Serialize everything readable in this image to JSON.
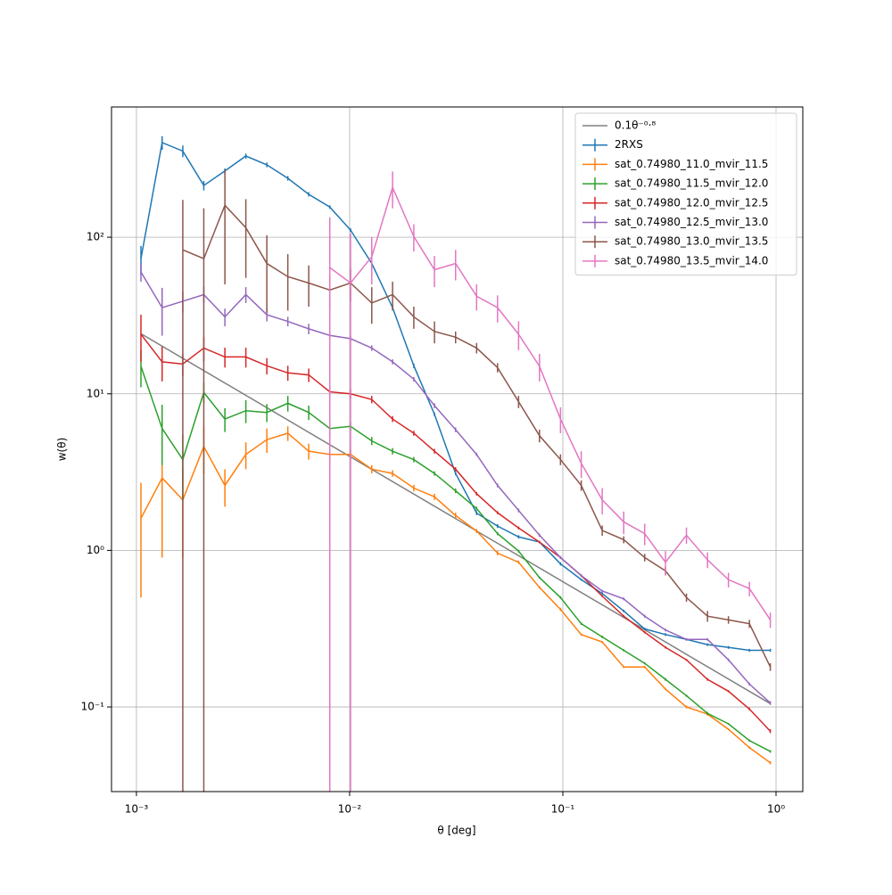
{
  "chart_data": {
    "type": "line",
    "x_label": "θ [deg]",
    "y_label": "w(θ)",
    "xscale": "log",
    "yscale": "log",
    "grid": true,
    "legend": "upper right",
    "xlim": [
      0.000764,
      1.335
    ],
    "ylim": [
      0.0288,
      679
    ],
    "xticks": [
      {
        "value": 0.001,
        "label": "10⁻³"
      },
      {
        "value": 0.01,
        "label": "10⁻²"
      },
      {
        "value": 0.1,
        "label": "10⁻¹"
      },
      {
        "value": 1,
        "label": "10⁰"
      }
    ],
    "yticks": [
      {
        "value": 0.1,
        "label": "10⁻¹"
      },
      {
        "value": 1,
        "label": "10⁰"
      },
      {
        "value": 10,
        "label": "10¹"
      },
      {
        "value": 100,
        "label": "10²"
      }
    ],
    "x": [
      0.00105,
      0.00132,
      0.00165,
      0.00207,
      0.0026,
      0.00326,
      0.00409,
      0.00513,
      0.00643,
      0.00807,
      0.0101,
      0.0127,
      0.0159,
      0.02,
      0.025,
      0.0314,
      0.0394,
      0.0494,
      0.062,
      0.0777,
      0.0975,
      0.122,
      0.153,
      0.193,
      0.242,
      0.303,
      0.38,
      0.477,
      0.598,
      0.75,
      0.94
    ],
    "series": [
      {
        "name": "0.1θ⁻⁰·⁸",
        "color": "#808080",
        "x": [
          0.00105,
          0.94
        ],
        "values": [
          24.2,
          0.105
        ]
      },
      {
        "name": "2RXS",
        "color": "#1f77b4",
        "values": [
          73,
          402,
          355,
          214,
          265,
          330,
          290,
          238,
          188,
          156,
          111,
          68,
          35.5,
          15.1,
          7.4,
          3.1,
          1.73,
          1.43,
          1.22,
          1.13,
          0.82,
          0.65,
          0.53,
          0.41,
          0.315,
          0.29,
          0.27,
          0.25,
          0.24,
          0.23,
          0.23
        ],
        "errors": [
          15,
          40,
          30,
          15,
          10,
          12,
          10,
          8,
          6,
          4,
          3,
          2,
          1.2,
          0.5,
          0.2,
          0.08,
          0.05,
          0.04,
          0.03,
          0.02,
          0.02,
          0.01,
          0.01,
          0.008,
          0.006,
          0.006,
          0.005,
          0.005,
          0.005,
          0.005,
          0.005
        ]
      },
      {
        "name": "sat_0.74980_11.0_mvir_11.5",
        "color": "#ff7f0e",
        "values": [
          1.6,
          2.9,
          2.1,
          4.6,
          2.6,
          4.1,
          5.1,
          5.6,
          4.3,
          4.1,
          4.1,
          3.3,
          3.1,
          2.5,
          2.2,
          1.67,
          1.33,
          0.96,
          0.84,
          0.58,
          0.42,
          0.29,
          0.26,
          0.18,
          0.18,
          0.13,
          0.1,
          0.09,
          0.072,
          0.055,
          0.044
        ],
        "errors": [
          1.1,
          2.0,
          1.2,
          1.5,
          0.7,
          0.8,
          0.9,
          0.6,
          0.5,
          0.4,
          0.3,
          0.2,
          0.15,
          0.12,
          0.1,
          0.07,
          0.04,
          0.03,
          0.02,
          0.01,
          0.01,
          0.005,
          0.004,
          0.003,
          0.003,
          0.002,
          0.002,
          0.002,
          0.001,
          0.001,
          0.001
        ]
      },
      {
        "name": "sat_0.74980_11.5_mvir_12.0",
        "color": "#2ca02c",
        "values": [
          15,
          6,
          3.8,
          10.2,
          6.9,
          7.8,
          7.6,
          8.7,
          7.6,
          6,
          6.2,
          5,
          4.3,
          3.8,
          3.1,
          2.4,
          1.85,
          1.28,
          0.99,
          0.67,
          0.5,
          0.34,
          0.28,
          0.23,
          0.19,
          0.15,
          0.118,
          0.091,
          0.078,
          0.061,
          0.052
        ],
        "errors": [
          4,
          2.5,
          1.7,
          1.5,
          1.2,
          1.3,
          1,
          1,
          0.8,
          0.5,
          0.4,
          0.3,
          0.2,
          0.15,
          0.1,
          0.08,
          0.05,
          0.03,
          0.02,
          0.01,
          0.01,
          0.006,
          0.005,
          0.004,
          0.003,
          0.003,
          0.002,
          0.002,
          0.001,
          0.001,
          0.001
        ]
      },
      {
        "name": "sat_0.74980_12.0_mvir_12.5",
        "color": "#d62728",
        "values": [
          24,
          16,
          15.5,
          19.6,
          17.2,
          17.2,
          15.1,
          13.6,
          13.2,
          10.3,
          10,
          9.2,
          6.9,
          5.6,
          4.3,
          3.3,
          2.3,
          1.74,
          1.39,
          1.13,
          0.9,
          0.69,
          0.51,
          0.38,
          0.3,
          0.24,
          0.2,
          0.15,
          0.126,
          0.097,
          0.07
        ],
        "errors": [
          8,
          4,
          2.5,
          3.5,
          2.5,
          2.5,
          1.8,
          1.5,
          1.3,
          0.9,
          0.7,
          0.5,
          0.3,
          0.2,
          0.15,
          0.1,
          0.06,
          0.04,
          0.03,
          0.02,
          0.01,
          0.01,
          0.008,
          0.006,
          0.005,
          0.004,
          0.003,
          0.003,
          0.002,
          0.002,
          0.002
        ]
      },
      {
        "name": "sat_0.74980_12.5_mvir_13.0",
        "color": "#9467bd",
        "values": [
          60,
          35.5,
          39,
          43,
          31,
          43,
          32,
          29,
          26,
          23.6,
          22.5,
          19.6,
          16,
          12.4,
          8.4,
          5.9,
          4.1,
          2.6,
          1.8,
          1.25,
          0.9,
          0.69,
          0.55,
          0.49,
          0.38,
          0.31,
          0.27,
          0.27,
          0.2,
          0.14,
          0.106
        ],
        "errors": [
          8,
          12,
          6,
          5,
          4,
          5,
          3,
          2,
          2,
          1.5,
          1,
          0.8,
          0.6,
          0.4,
          0.3,
          0.2,
          0.1,
          0.07,
          0.05,
          0.03,
          0.02,
          0.015,
          0.01,
          0.01,
          0.008,
          0.006,
          0.005,
          0.005,
          0.004,
          0.003,
          0.003
        ]
      },
      {
        "name": "sat_0.74980_13.0_mvir_13.5",
        "color": "#8c564b",
        "values": [
          null,
          null,
          83,
          73,
          160,
          115,
          68,
          56,
          51,
          46,
          51,
          38,
          43,
          31,
          25,
          23,
          19.6,
          14.7,
          8.9,
          5.4,
          3.8,
          2.6,
          1.34,
          1.17,
          0.9,
          0.74,
          0.5,
          0.38,
          0.36,
          0.34,
          0.18
        ],
        "errors": [
          null,
          null,
          90,
          80,
          110,
          60,
          35,
          22,
          15,
          12,
          12,
          10,
          9,
          5,
          4,
          2,
          1.5,
          1,
          0.8,
          0.5,
          0.3,
          0.2,
          0.1,
          0.06,
          0.05,
          0.04,
          0.03,
          0.03,
          0.02,
          0.02,
          0.01
        ]
      },
      {
        "name": "sat_0.74980_13.5_mvir_14.0",
        "color": "#e377c2",
        "values": [
          null,
          null,
          null,
          null,
          null,
          null,
          null,
          null,
          null,
          64,
          51,
          75,
          208,
          101,
          62,
          68,
          42,
          35.5,
          24,
          15,
          6.9,
          3.6,
          2.1,
          1.52,
          1.28,
          0.84,
          1.25,
          0.87,
          0.65,
          0.57,
          0.36
        ],
        "errors": [
          null,
          null,
          null,
          null,
          null,
          null,
          null,
          null,
          null,
          70,
          55,
          25,
          55,
          20,
          14,
          15,
          8,
          7,
          5,
          3,
          1.3,
          0.7,
          0.4,
          0.25,
          0.2,
          0.15,
          0.15,
          0.1,
          0.07,
          0.06,
          0.04
        ]
      }
    ]
  }
}
